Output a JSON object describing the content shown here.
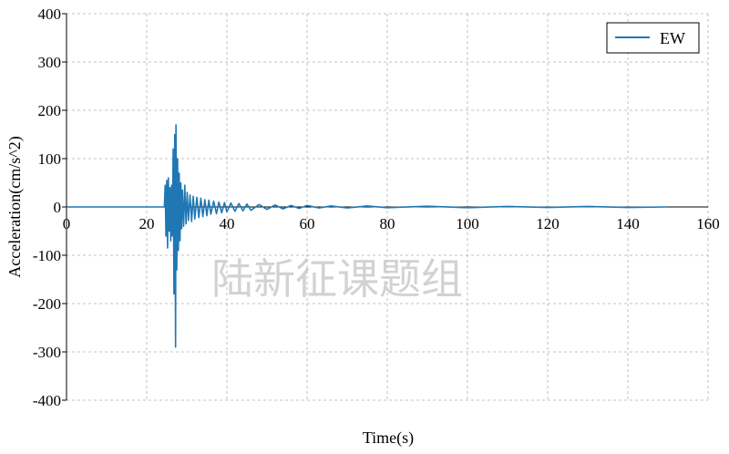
{
  "chart_data": {
    "type": "line",
    "title": "",
    "xlabel": "Time(s)",
    "ylabel": "Acceleration(cm/s^2)",
    "xlim": [
      0,
      160
    ],
    "ylim": [
      -400,
      400
    ],
    "xticks": [
      0,
      20,
      40,
      60,
      80,
      100,
      120,
      140,
      160
    ],
    "yticks": [
      400,
      300,
      200,
      100,
      0,
      -100,
      -200,
      -300,
      -400
    ],
    "grid": true,
    "legend_position": "top-right",
    "series": [
      {
        "name": "EW",
        "color": "#1f77b4",
        "points": [
          [
            0,
            0
          ],
          [
            24.4,
            0
          ],
          [
            24.6,
            45
          ],
          [
            24.8,
            -60
          ],
          [
            25.0,
            55
          ],
          [
            25.2,
            -85
          ],
          [
            25.4,
            60
          ],
          [
            25.6,
            -50
          ],
          [
            25.8,
            40
          ],
          [
            26.0,
            -70
          ],
          [
            26.2,
            45
          ],
          [
            26.4,
            -60
          ],
          [
            26.6,
            120
          ],
          [
            26.8,
            -180
          ],
          [
            27.0,
            150
          ],
          [
            27.2,
            -290
          ],
          [
            27.3,
            170
          ],
          [
            27.5,
            -130
          ],
          [
            27.7,
            100
          ],
          [
            27.9,
            -90
          ],
          [
            28.1,
            70
          ],
          [
            28.3,
            -70
          ],
          [
            28.5,
            50
          ],
          [
            28.7,
            -45
          ],
          [
            28.9,
            35
          ],
          [
            29.2,
            -40
          ],
          [
            29.5,
            45
          ],
          [
            29.8,
            -35
          ],
          [
            30.1,
            30
          ],
          [
            30.4,
            -28
          ],
          [
            30.8,
            25
          ],
          [
            31.2,
            -30
          ],
          [
            31.6,
            22
          ],
          [
            32,
            -25
          ],
          [
            32.5,
            20
          ],
          [
            33,
            -22
          ],
          [
            33.5,
            18
          ],
          [
            34,
            -20
          ],
          [
            34.5,
            15
          ],
          [
            35,
            -18
          ],
          [
            35.5,
            14
          ],
          [
            36,
            -15
          ],
          [
            36.7,
            12
          ],
          [
            37.4,
            -14
          ],
          [
            38,
            10
          ],
          [
            38.7,
            -12
          ],
          [
            39.4,
            9
          ],
          [
            40,
            -10
          ],
          [
            41,
            8
          ],
          [
            42,
            -9
          ],
          [
            43,
            7
          ],
          [
            44,
            -8
          ],
          [
            45,
            6
          ],
          [
            46,
            -7
          ],
          [
            48,
            5
          ],
          [
            50,
            -5
          ],
          [
            52,
            4
          ],
          [
            54,
            -4
          ],
          [
            56,
            3
          ],
          [
            58,
            -3
          ],
          [
            60,
            3
          ],
          [
            63,
            -2
          ],
          [
            66,
            2
          ],
          [
            70,
            -2
          ],
          [
            75,
            2
          ],
          [
            80,
            -1.5
          ],
          [
            90,
            1.5
          ],
          [
            100,
            -1.5
          ],
          [
            110,
            1
          ],
          [
            120,
            -1
          ],
          [
            130,
            1
          ],
          [
            140,
            -1
          ],
          [
            150,
            0
          ]
        ]
      }
    ],
    "watermark": "陆新征课题组"
  }
}
